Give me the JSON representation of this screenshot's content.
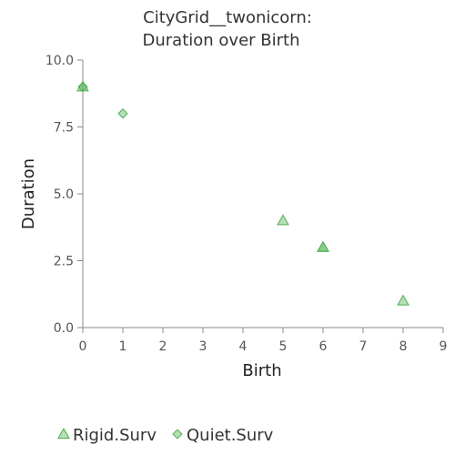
{
  "chart_data": {
    "type": "scatter",
    "title": [
      "CityGrid__twonicorn:",
      "Duration over Birth"
    ],
    "xlabel": "Birth",
    "ylabel": "Duration",
    "xlim": [
      0,
      9
    ],
    "ylim": [
      0,
      10
    ],
    "xticks": [
      0,
      1,
      2,
      3,
      4,
      5,
      6,
      7,
      8,
      9
    ],
    "yticks": [
      0,
      2.5,
      5,
      7.5,
      10
    ],
    "ytick_labels": [
      "0.0",
      "2.5",
      "5.0",
      "7.5",
      "10.0"
    ],
    "grid": false,
    "legend": "bottom-left",
    "series": [
      {
        "name": "Rigid.Surv",
        "marker": "triangle",
        "color": "#4caf50",
        "points": [
          [
            0,
            9
          ],
          [
            5,
            4
          ],
          [
            6,
            3
          ],
          [
            6,
            3
          ],
          [
            8,
            1
          ]
        ]
      },
      {
        "name": "Quiet.Surv",
        "marker": "diamond",
        "color": "#4caf50",
        "points": [
          [
            0,
            9
          ],
          [
            1,
            8
          ]
        ]
      }
    ]
  }
}
